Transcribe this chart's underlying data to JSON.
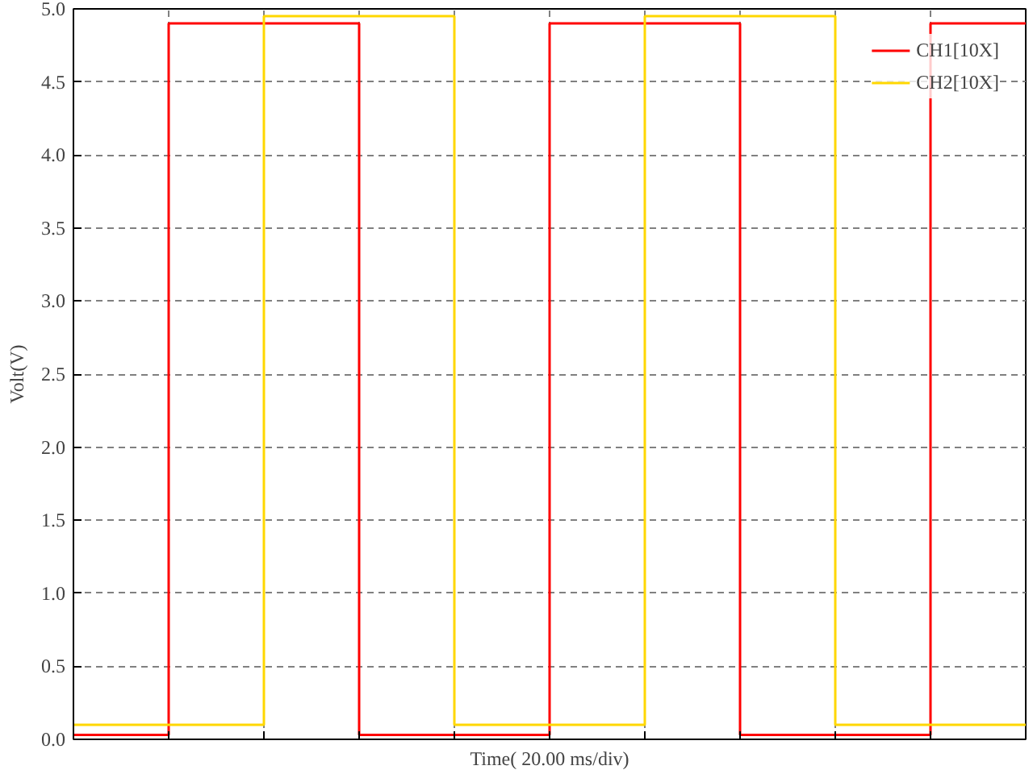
{
  "chart_data": {
    "type": "step",
    "xlabel": "Time( 20.00 ms/div)",
    "ylabel": "Volt(V)",
    "categories": [
      null,
      null,
      null,
      null,
      null,
      null,
      null,
      null,
      null,
      null,
      null,
      null,
      null,
      null,
      null,
      null,
      null,
      null,
      null,
      null,
      null,
      null,
      null,
      null,
      null,
      null,
      null,
      null,
      null,
      null,
      null,
      null,
      null,
      null,
      null,
      null,
      null,
      null,
      null,
      null,
      null,
      null,
      null,
      null,
      null,
      null,
      null,
      null,
      null,
      null,
      null,
      null,
      null,
      null,
      null,
      null,
      null,
      null,
      null,
      null,
      null,
      null,
      null,
      null,
      null,
      null,
      null,
      null,
      null,
      null,
      null,
      null,
      null,
      null,
      null,
      null,
      null,
      null,
      null,
      null,
      null,
      null,
      null,
      null,
      null,
      null,
      null,
      null,
      null,
      null,
      null,
      null,
      null,
      null,
      null,
      null,
      null,
      null,
      null,
      null,
      null
    ],
    "series": [
      {
        "name": "CH1[10X]",
        "color": "#ff0000",
        "values": [
          0.03,
          0.03,
          0.03,
          0.03,
          0.03,
          0.03,
          0.03,
          0.03,
          0.03,
          0.03,
          4.9,
          4.9,
          4.9,
          4.9,
          4.9,
          4.9,
          4.9,
          4.9,
          4.9,
          4.9,
          4.9,
          4.9,
          4.9,
          4.9,
          4.9,
          4.9,
          4.9,
          4.9,
          4.9,
          4.9,
          0.03,
          0.03,
          0.03,
          0.03,
          0.03,
          0.03,
          0.03,
          0.03,
          0.03,
          0.03,
          0.03,
          0.03,
          0.03,
          0.03,
          0.03,
          0.03,
          0.03,
          0.03,
          0.03,
          0.03,
          4.9,
          4.9,
          4.9,
          4.9,
          4.9,
          4.9,
          4.9,
          4.9,
          4.9,
          4.9,
          4.9,
          4.9,
          4.9,
          4.9,
          4.9,
          4.9,
          4.9,
          4.9,
          4.9,
          4.9,
          0.03,
          0.03,
          0.03,
          0.03,
          0.03,
          0.03,
          0.03,
          0.03,
          0.03,
          0.03,
          0.03,
          0.03,
          0.03,
          0.03,
          0.03,
          0.03,
          0.03,
          0.03,
          0.03,
          0.03,
          4.9,
          4.9,
          4.9,
          4.9,
          4.9,
          4.9,
          4.9,
          4.9,
          4.9,
          4.9,
          4.9
        ]
      },
      {
        "name": "CH2[10X]",
        "color": "#ffd700",
        "values": [
          0.1,
          0.1,
          0.1,
          0.1,
          0.1,
          0.1,
          0.1,
          0.1,
          0.1,
          0.1,
          0.1,
          0.1,
          0.1,
          0.1,
          0.1,
          0.1,
          0.1,
          0.1,
          0.1,
          0.1,
          4.95,
          4.95,
          4.95,
          4.95,
          4.95,
          4.95,
          4.95,
          4.95,
          4.95,
          4.95,
          4.95,
          4.95,
          4.95,
          4.95,
          4.95,
          4.95,
          4.95,
          4.95,
          4.95,
          4.95,
          0.1,
          0.1,
          0.1,
          0.1,
          0.1,
          0.1,
          0.1,
          0.1,
          0.1,
          0.1,
          0.1,
          0.1,
          0.1,
          0.1,
          0.1,
          0.1,
          0.1,
          0.1,
          0.1,
          0.1,
          4.95,
          4.95,
          4.95,
          4.95,
          4.95,
          4.95,
          4.95,
          4.95,
          4.95,
          4.95,
          4.95,
          4.95,
          4.95,
          4.95,
          4.95,
          4.95,
          4.95,
          4.95,
          4.95,
          4.95,
          0.1,
          0.1,
          0.1,
          0.1,
          0.1,
          0.1,
          0.1,
          0.1,
          0.1,
          0.1,
          0.1,
          0.1,
          0.1,
          0.1,
          0.1,
          0.1,
          0.1,
          0.1,
          0.1,
          0.1,
          0.1
        ]
      }
    ],
    "ylim": [
      0,
      5
    ],
    "yticks": [
      {
        "value": 0,
        "label": "0.0"
      },
      {
        "value": 0.5,
        "label": "0.5"
      },
      {
        "value": 1,
        "label": "1.0"
      },
      {
        "value": 1.5,
        "label": "1.5"
      },
      {
        "value": 2,
        "label": "2.0"
      },
      {
        "value": 2.5,
        "label": "2.5"
      },
      {
        "value": 3,
        "label": "3.0"
      },
      {
        "value": 3.5,
        "label": "3.5"
      },
      {
        "value": 4,
        "label": "4.0"
      },
      {
        "value": 4.5,
        "label": "4.5"
      },
      {
        "value": 5,
        "label": "5.0"
      }
    ],
    "grid": true,
    "legend": "top right",
    "line_style": "solid"
  }
}
